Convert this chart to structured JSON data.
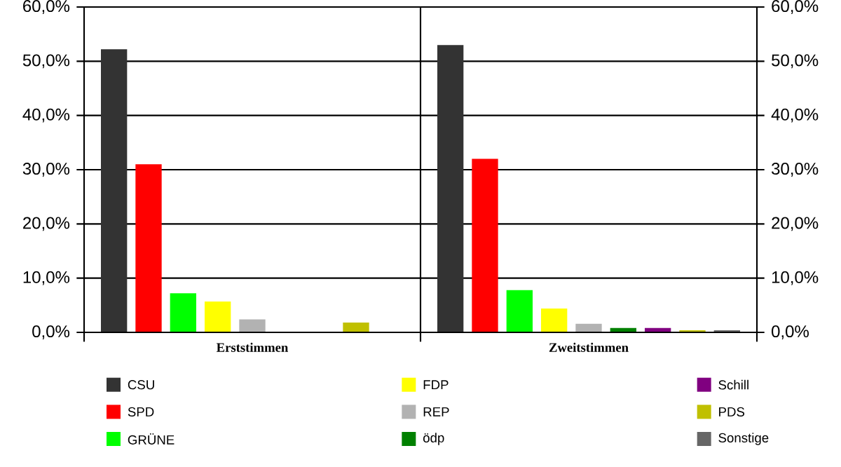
{
  "chart_data": {
    "type": "bar",
    "categories": [
      "Erststimmen",
      "Zweitstimmen"
    ],
    "series": [
      {
        "name": "CSU",
        "color": "#333333",
        "values": [
          52.2,
          53.0
        ]
      },
      {
        "name": "SPD",
        "color": "#ff0000",
        "values": [
          31.0,
          32.0
        ]
      },
      {
        "name": "GRÜNE",
        "color": "#00ff00",
        "values": [
          7.2,
          7.8
        ]
      },
      {
        "name": "FDP",
        "color": "#ffff00",
        "values": [
          5.7,
          4.4
        ]
      },
      {
        "name": "REP",
        "color": "#b2b2b2",
        "values": [
          2.4,
          1.6
        ]
      },
      {
        "name": "ödp",
        "color": "#008000",
        "values": [
          null,
          0.8
        ]
      },
      {
        "name": "Schill",
        "color": "#800080",
        "values": [
          null,
          0.8
        ]
      },
      {
        "name": "PDS",
        "color": "#c0c000",
        "values": [
          1.8,
          0.4
        ]
      },
      {
        "name": "Sonstige",
        "color": "#666666",
        "values": [
          null,
          0.4
        ]
      }
    ],
    "ylim": [
      0,
      60
    ],
    "yticks": [
      {
        "value": 0,
        "label": "0,0%"
      },
      {
        "value": 10,
        "label": "10,0%"
      },
      {
        "value": 20,
        "label": "20,0%"
      },
      {
        "value": 30,
        "label": "30,0%"
      },
      {
        "value": 40,
        "label": "40,0%"
      },
      {
        "value": 50,
        "label": "50,0%"
      },
      {
        "value": 60,
        "label": "60,0%"
      }
    ],
    "y2lim": [
      0,
      60
    ],
    "y2ticks": [
      {
        "value": 0,
        "label": "0,0%"
      },
      {
        "value": 10,
        "label": "10,0%"
      },
      {
        "value": 20,
        "label": "20,0%"
      },
      {
        "value": 30,
        "label": "30,0%"
      },
      {
        "value": 40,
        "label": "40,0%"
      },
      {
        "value": 50,
        "label": "50,0%"
      },
      {
        "value": 60,
        "label": "60,0%"
      }
    ],
    "grid": "y",
    "legend": "bottom"
  }
}
